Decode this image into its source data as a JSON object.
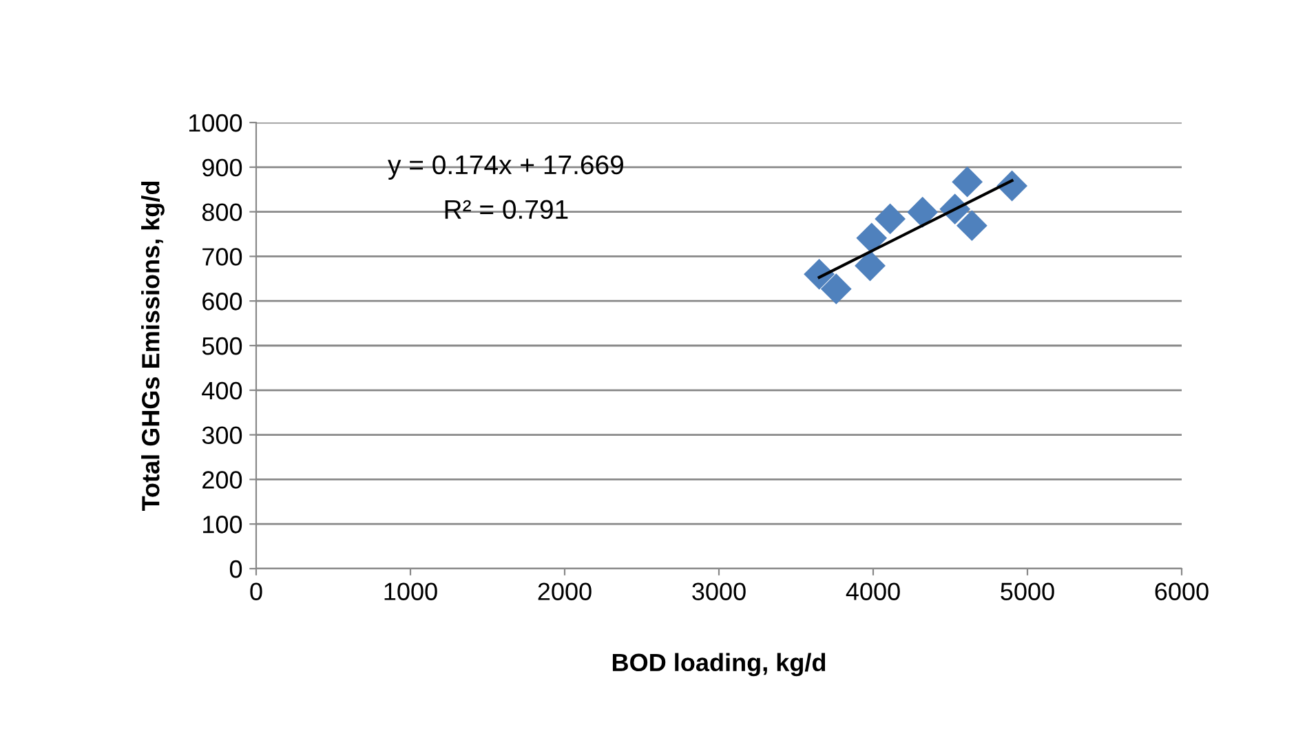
{
  "chart_data": {
    "type": "scatter",
    "xlabel": "BOD loading, kg/d",
    "ylabel": "Total GHGs Emissions, kg/d",
    "xlim": [
      0,
      6000
    ],
    "xticks": [
      0,
      1000,
      2000,
      3000,
      4000,
      5000,
      6000
    ],
    "ylim": [
      0,
      1000
    ],
    "yticks": [
      0,
      100,
      200,
      300,
      400,
      500,
      600,
      700,
      800,
      900,
      1000
    ],
    "grid": "y",
    "legend": false,
    "marker": "diamond",
    "annotations": [
      "y = 0.174x + 17.669",
      "R² = 0.791"
    ],
    "series": [
      {
        "color": "#4f81bd",
        "x": [
          3650,
          3760,
          3980,
          3990,
          4110,
          4320,
          4530,
          4610,
          4640,
          4900
        ],
        "values": [
          660,
          627,
          679,
          741,
          784,
          799,
          806,
          867,
          769,
          858
        ]
      },
      {
        "type": "line",
        "color": "#000000",
        "x": [
          3650,
          4900
        ],
        "values": [
          653,
          870
        ],
        "marker": "none",
        "line_style": "solid"
      }
    ]
  }
}
